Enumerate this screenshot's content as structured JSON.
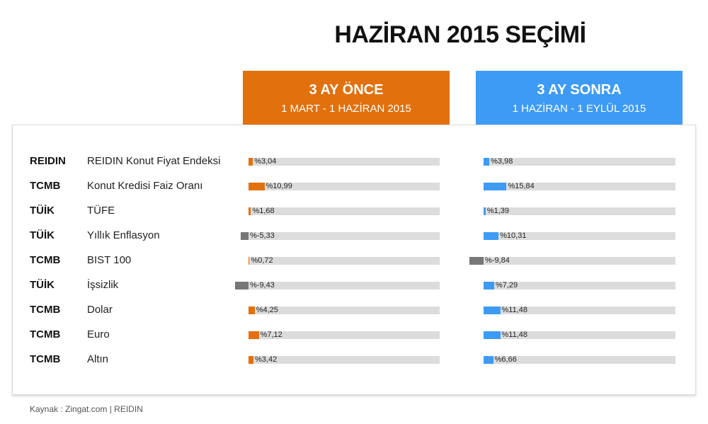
{
  "title": "HAZİRAN 2015 SEÇİMİ",
  "headers": {
    "before": {
      "title": "3 AY ÖNCE",
      "subtitle": "1 MART - 1 HAZİRAN 2015",
      "color": "#e2700c"
    },
    "after": {
      "title": "3 AY SONRA",
      "subtitle": "1 HAZİRAN - 1 EYLÜL 2015",
      "color": "#3d9bf5"
    }
  },
  "negative_color": "#777777",
  "track_color": "#dcdcdc",
  "footer": "Kaynak : Zingat.com | REIDIN",
  "chart_data": {
    "type": "bar",
    "categories": [
      "REIDIN Konut Fiyat Endeksi",
      "Konut Kredisi Faiz Oranı",
      "TÜFE",
      "Yıllık Enflasyon",
      "BIST 100",
      "İşsizlik",
      "Dolar",
      "Euro",
      "Altın"
    ],
    "sources": [
      "REIDIN",
      "TCMB",
      "TÜİK",
      "TÜİK",
      "TCMB",
      "TÜİK",
      "TCMB",
      "TCMB",
      "TCMB"
    ],
    "series": [
      {
        "name": "3 AY ÖNCE",
        "values": [
          3.04,
          10.99,
          1.68,
          -5.33,
          0.72,
          -9.43,
          4.25,
          7.12,
          3.42
        ],
        "labels": [
          "%3,04",
          "%10,99",
          "%1,68",
          "%-5,33",
          "%0,72",
          "%-9,43",
          "%4,25",
          "%7,12",
          "%3,42"
        ]
      },
      {
        "name": "3 AY SONRA",
        "values": [
          3.98,
          15.84,
          1.39,
          10.31,
          -9.84,
          7.29,
          11.48,
          11.48,
          6.66
        ],
        "labels": [
          "%3,98",
          "%15,84",
          "%1,39",
          "%10,31",
          "%-9,84",
          "%7,29",
          "%11,48",
          "%11,48",
          "%6,66"
        ]
      }
    ]
  }
}
